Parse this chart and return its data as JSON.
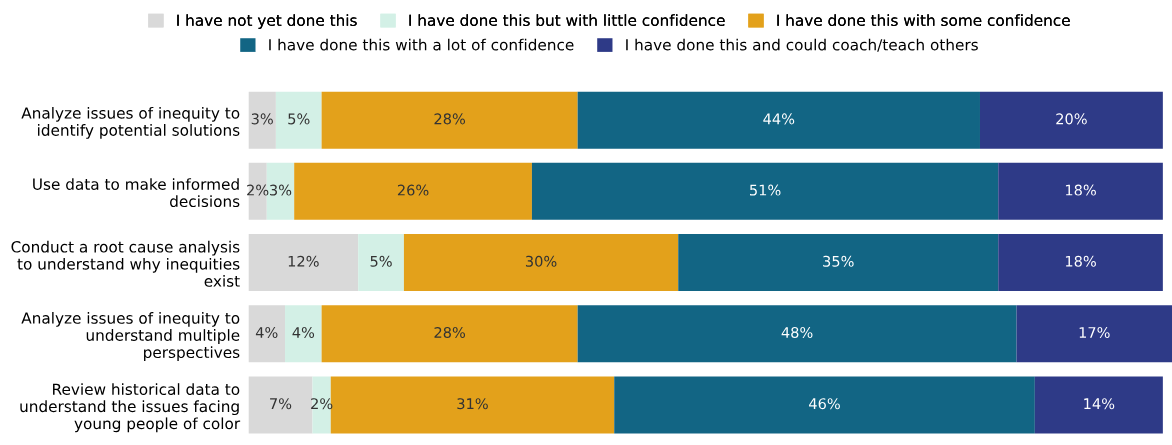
{
  "chart_data": {
    "type": "bar",
    "orientation": "horizontal",
    "stacked": true,
    "legend": "top",
    "categories": [
      "Analyze issues of inequity to\nidentify potential solutions",
      "Use data to make informed\ndecisions",
      "Conduct a root cause analysis\nto understand why inequities\nexist",
      "Analyze issues of inequity to\nunderstand multiple\nperspectives",
      "Review historical data to\nunderstand the issues facing\nyoung people of color"
    ],
    "series": [
      {
        "name": "I have not yet done this",
        "color": "#d9d9d9",
        "values": [
          3,
          2,
          12,
          4,
          7
        ],
        "value_labels": [
          "3%",
          "2%",
          "12%",
          "4%",
          "7%"
        ]
      },
      {
        "name": "I have done this but with little confidence",
        "color": "#d3f0e6",
        "values": [
          5,
          3,
          5,
          4,
          2
        ],
        "value_labels": [
          "5%",
          "3%",
          "5%",
          "4%",
          "2%"
        ]
      },
      {
        "name": "I have done this with some confidence",
        "color": "#e3a11b",
        "values": [
          28,
          26,
          30,
          28,
          31
        ],
        "value_labels": [
          "28%",
          "26%",
          "30%",
          "28%",
          "31%"
        ]
      },
      {
        "name": "I have done this with a lot of confidence",
        "color": "#126584",
        "values": [
          44,
          51,
          35,
          48,
          46
        ],
        "value_labels": [
          "44%",
          "51%",
          "35%",
          "48%",
          "46%"
        ]
      },
      {
        "name": "I have done this and could coach/teach others",
        "color": "#2e3a87",
        "values": [
          20,
          18,
          18,
          17,
          14
        ],
        "value_labels": [
          "20%",
          "18%",
          "18%",
          "17%",
          "14%"
        ]
      }
    ]
  }
}
